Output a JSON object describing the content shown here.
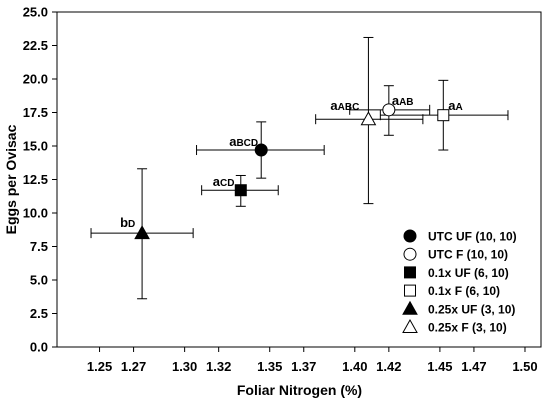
{
  "chart_data": {
    "type": "scatter",
    "title": "",
    "xlabel": "Foliar Nitrogen (%)",
    "ylabel": "Eggs per Ovisac",
    "xlim": [
      1.225,
      1.51
    ],
    "ylim": [
      0.0,
      25.0
    ],
    "x_ticks": [
      1.25,
      1.27,
      1.3,
      1.32,
      1.35,
      1.37,
      1.4,
      1.42,
      1.45,
      1.47,
      1.5
    ],
    "x_tick_labels": [
      "1.25",
      "1.27",
      "1.30",
      "1.32",
      "1.35",
      "1.37",
      "1.40",
      "1.42",
      "1.45",
      "1.47",
      "1.50"
    ],
    "y_ticks": [
      0,
      2.5,
      5,
      7.5,
      10,
      12.5,
      15,
      17.5,
      20,
      22.5,
      25
    ],
    "y_tick_labels": [
      "0.0",
      "2.5",
      "5.0",
      "7.5",
      "10.0",
      "12.5",
      "15.0",
      "17.5",
      "20.0",
      "22.5",
      "25.0"
    ],
    "grid": false,
    "legend_position": "bottom-right",
    "series": [
      {
        "name": "UTC UF (10, 10)",
        "marker": "circle",
        "fill": "filled",
        "x": 1.345,
        "y": 14.7,
        "x_err": [
          1.307,
          1.382
        ],
        "y_err": [
          12.6,
          16.8
        ],
        "annotation": {
          "main": "a",
          "sub": "BCD"
        }
      },
      {
        "name": "UTC F (10, 10)",
        "marker": "circle",
        "fill": "open",
        "x": 1.42,
        "y": 17.7,
        "x_err": [
          1.397,
          1.444
        ],
        "y_err": [
          15.8,
          19.5
        ],
        "annotation": {
          "main": "a",
          "sub": "AB"
        }
      },
      {
        "name": "0.1x UF (6, 10)",
        "marker": "square",
        "fill": "filled",
        "x": 1.333,
        "y": 11.7,
        "x_err": [
          1.31,
          1.355
        ],
        "y_err": [
          10.5,
          12.8
        ],
        "annotation": {
          "main": "a",
          "sub": "CD"
        }
      },
      {
        "name": "0.1x F (6, 10)",
        "marker": "square",
        "fill": "open",
        "x": 1.452,
        "y": 17.3,
        "x_err": [
          1.415,
          1.49
        ],
        "y_err": [
          14.7,
          19.9
        ],
        "annotation": {
          "main": "a",
          "sub": "A"
        }
      },
      {
        "name": "0.25x UF (3, 10)",
        "marker": "triangle",
        "fill": "filled",
        "x": 1.275,
        "y": 8.5,
        "x_err": [
          1.245,
          1.305
        ],
        "y_err": [
          3.6,
          13.3
        ],
        "annotation": {
          "main": "b",
          "sub": "D"
        }
      },
      {
        "name": "0.25x F (3, 10)",
        "marker": "triangle",
        "fill": "open",
        "x": 1.408,
        "y": 17.0,
        "x_err": [
          1.377,
          1.44
        ],
        "y_err": [
          10.7,
          23.1
        ],
        "annotation": {
          "main": "a",
          "sub": "ABC"
        }
      }
    ]
  }
}
